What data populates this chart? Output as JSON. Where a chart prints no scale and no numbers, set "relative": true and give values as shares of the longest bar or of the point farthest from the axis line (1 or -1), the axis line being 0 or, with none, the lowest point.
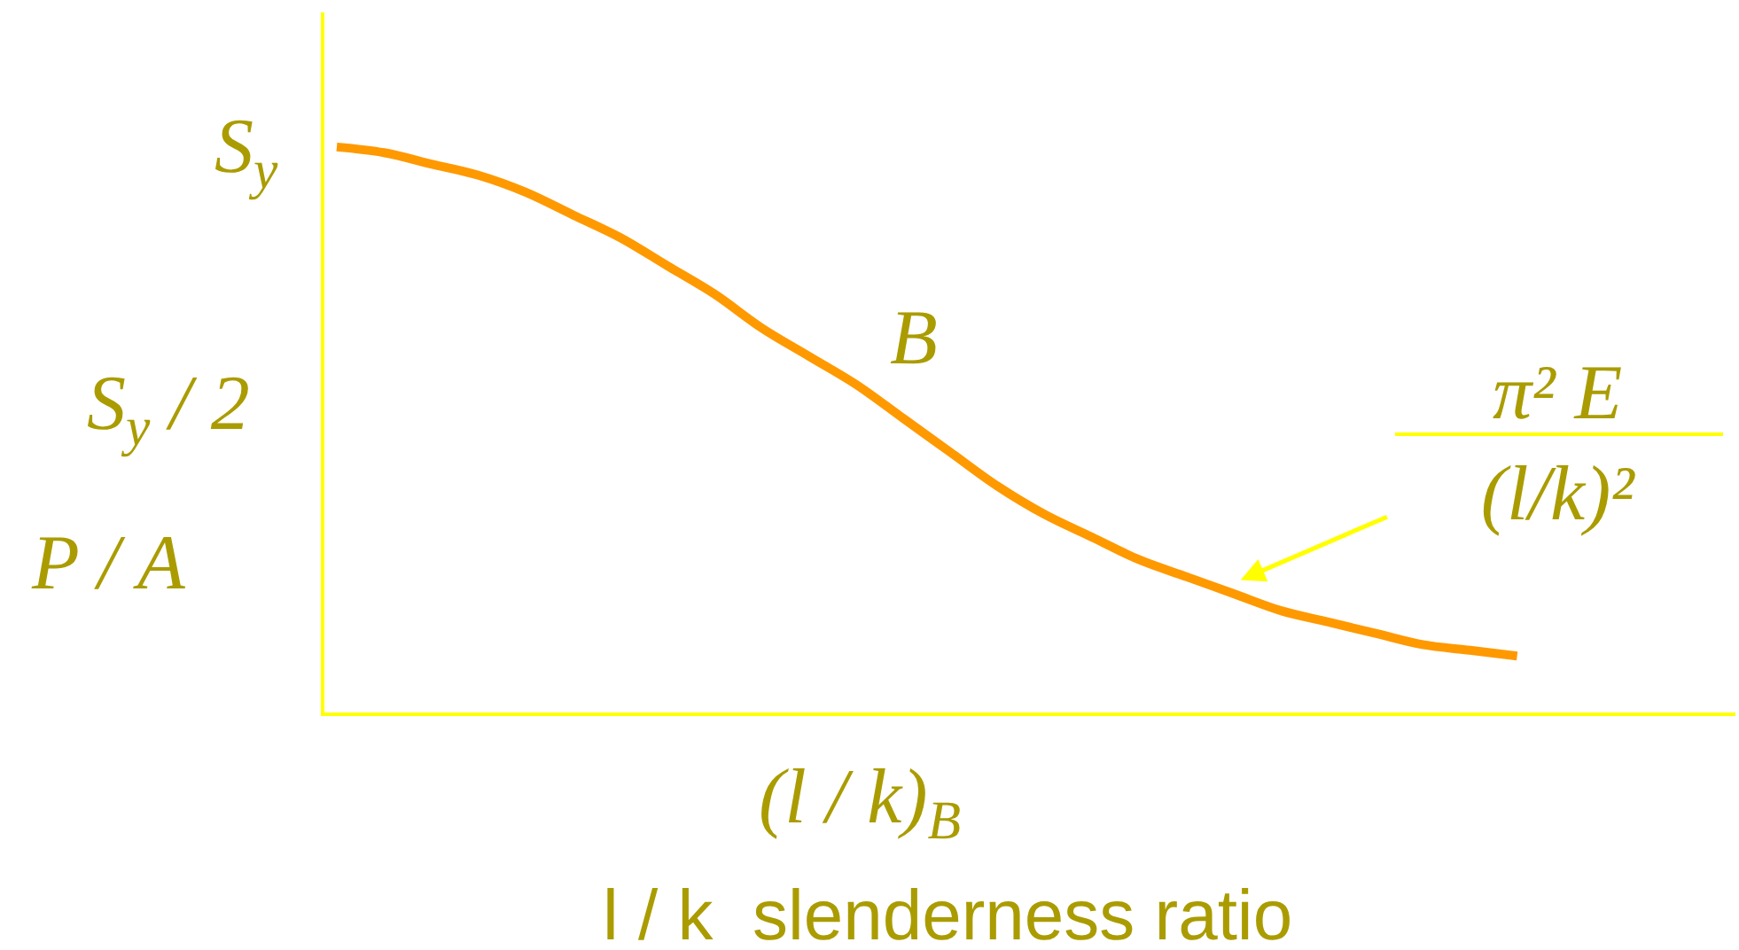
{
  "chart_data": {
    "type": "line",
    "relative": true,
    "categories": [
      null,
      null,
      null,
      null,
      null,
      null,
      null,
      null,
      null,
      null,
      null,
      null,
      null,
      null,
      null,
      null,
      null,
      null,
      null,
      null,
      null,
      null,
      null,
      null,
      null,
      null
    ],
    "series": [
      {
        "color": "#ff9900",
        "values": [
          1.0,
          0.99,
          0.97,
          0.95,
          0.92,
          0.88,
          0.84,
          0.79,
          0.74,
          0.68,
          0.63,
          0.58,
          0.52,
          0.46,
          0.4,
          0.35,
          0.31,
          0.27,
          0.24,
          0.21,
          0.18,
          0.16,
          0.14,
          0.12,
          0.11,
          0.1
        ]
      }
    ],
    "xlabel": "l / k  slenderness ratio",
    "ylabel": "P / A",
    "annotations": [
      "S$_{y}$",
      "S$_{y}$ / 2",
      "(l / k)$_{B}$",
      "B",
      "π² E\n(l/k)²"
    ],
    "marker": "none"
  }
}
